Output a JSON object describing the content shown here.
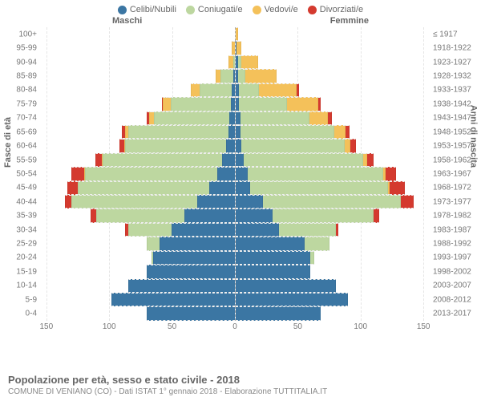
{
  "legend": [
    {
      "label": "Celibi/Nubili",
      "color": "#3b76a3"
    },
    {
      "label": "Coniugati/e",
      "color": "#bdd7a0"
    },
    {
      "label": "Vedovi/e",
      "color": "#f4c15a"
    },
    {
      "label": "Divorziati/e",
      "color": "#d43a2f"
    }
  ],
  "side_labels": {
    "male": "Maschi",
    "female": "Femmine"
  },
  "axis_labels": {
    "left": "Fasce di età",
    "right": "Anni di nascita"
  },
  "title": "Popolazione per età, sesso e stato civile - 2018",
  "subtitle": "COMUNE DI VENIANO (CO) - Dati ISTAT 1° gennaio 2018 - Elaborazione TUTTITALIA.IT",
  "x_ticks": [
    150,
    100,
    50,
    0,
    50,
    100,
    150
  ],
  "x_max": 155,
  "colors": {
    "celibi": "#3b76a3",
    "coniugati": "#bdd7a0",
    "vedovi": "#f4c15a",
    "divorziati": "#d43a2f",
    "grid": "#e5e5e5",
    "centerline": "#aaaaaa",
    "text_muted": "#777777",
    "background": "#ffffff"
  },
  "rows": [
    {
      "age": "100+",
      "birth": "≤ 1917",
      "m": {
        "c": 0,
        "g": 0,
        "v": 0,
        "d": 0
      },
      "f": {
        "c": 0,
        "g": 0,
        "v": 2,
        "d": 0
      }
    },
    {
      "age": "95-99",
      "birth": "1918-1922",
      "m": {
        "c": 0,
        "g": 0,
        "v": 2,
        "d": 0
      },
      "f": {
        "c": 1,
        "g": 0,
        "v": 4,
        "d": 0
      }
    },
    {
      "age": "90-94",
      "birth": "1923-1927",
      "m": {
        "c": 0,
        "g": 1,
        "v": 4,
        "d": 0
      },
      "f": {
        "c": 2,
        "g": 3,
        "v": 13,
        "d": 0
      }
    },
    {
      "age": "85-89",
      "birth": "1928-1932",
      "m": {
        "c": 1,
        "g": 10,
        "v": 4,
        "d": 0
      },
      "f": {
        "c": 2,
        "g": 6,
        "v": 25,
        "d": 0
      }
    },
    {
      "age": "80-84",
      "birth": "1933-1937",
      "m": {
        "c": 2,
        "g": 26,
        "v": 7,
        "d": 0
      },
      "f": {
        "c": 3,
        "g": 16,
        "v": 30,
        "d": 2
      }
    },
    {
      "age": "75-79",
      "birth": "1938-1942",
      "m": {
        "c": 3,
        "g": 48,
        "v": 6,
        "d": 1
      },
      "f": {
        "c": 3,
        "g": 38,
        "v": 25,
        "d": 2
      }
    },
    {
      "age": "70-74",
      "birth": "1943-1947",
      "m": {
        "c": 4,
        "g": 60,
        "v": 4,
        "d": 2
      },
      "f": {
        "c": 4,
        "g": 55,
        "v": 15,
        "d": 3
      }
    },
    {
      "age": "65-69",
      "birth": "1948-1952",
      "m": {
        "c": 5,
        "g": 80,
        "v": 2,
        "d": 3
      },
      "f": {
        "c": 4,
        "g": 75,
        "v": 9,
        "d": 3
      }
    },
    {
      "age": "60-64",
      "birth": "1953-1957",
      "m": {
        "c": 7,
        "g": 80,
        "v": 1,
        "d": 4
      },
      "f": {
        "c": 5,
        "g": 82,
        "v": 5,
        "d": 4
      }
    },
    {
      "age": "55-59",
      "birth": "1958-1962",
      "m": {
        "c": 10,
        "g": 95,
        "v": 1,
        "d": 5
      },
      "f": {
        "c": 7,
        "g": 95,
        "v": 3,
        "d": 5
      }
    },
    {
      "age": "50-54",
      "birth": "1963-1967",
      "m": {
        "c": 14,
        "g": 105,
        "v": 1,
        "d": 10
      },
      "f": {
        "c": 10,
        "g": 108,
        "v": 2,
        "d": 8
      }
    },
    {
      "age": "45-49",
      "birth": "1968-1972",
      "m": {
        "c": 20,
        "g": 105,
        "v": 0,
        "d": 8
      },
      "f": {
        "c": 12,
        "g": 110,
        "v": 1,
        "d": 12
      }
    },
    {
      "age": "40-44",
      "birth": "1973-1977",
      "m": {
        "c": 30,
        "g": 100,
        "v": 0,
        "d": 5
      },
      "f": {
        "c": 22,
        "g": 110,
        "v": 0,
        "d": 10
      }
    },
    {
      "age": "35-39",
      "birth": "1978-1982",
      "m": {
        "c": 40,
        "g": 70,
        "v": 0,
        "d": 5
      },
      "f": {
        "c": 30,
        "g": 80,
        "v": 0,
        "d": 5
      }
    },
    {
      "age": "30-34",
      "birth": "1983-1987",
      "m": {
        "c": 50,
        "g": 35,
        "v": 0,
        "d": 2
      },
      "f": {
        "c": 35,
        "g": 45,
        "v": 0,
        "d": 2
      }
    },
    {
      "age": "25-29",
      "birth": "1988-1992",
      "m": {
        "c": 60,
        "g": 10,
        "v": 0,
        "d": 0
      },
      "f": {
        "c": 55,
        "g": 20,
        "v": 0,
        "d": 0
      }
    },
    {
      "age": "20-24",
      "birth": "1993-1997",
      "m": {
        "c": 65,
        "g": 1,
        "v": 0,
        "d": 0
      },
      "f": {
        "c": 60,
        "g": 3,
        "v": 0,
        "d": 0
      }
    },
    {
      "age": "15-19",
      "birth": "1998-2002",
      "m": {
        "c": 70,
        "g": 0,
        "v": 0,
        "d": 0
      },
      "f": {
        "c": 60,
        "g": 0,
        "v": 0,
        "d": 0
      }
    },
    {
      "age": "10-14",
      "birth": "2003-2007",
      "m": {
        "c": 85,
        "g": 0,
        "v": 0,
        "d": 0
      },
      "f": {
        "c": 80,
        "g": 0,
        "v": 0,
        "d": 0
      }
    },
    {
      "age": "5-9",
      "birth": "2008-2012",
      "m": {
        "c": 98,
        "g": 0,
        "v": 0,
        "d": 0
      },
      "f": {
        "c": 90,
        "g": 0,
        "v": 0,
        "d": 0
      }
    },
    {
      "age": "0-4",
      "birth": "2013-2017",
      "m": {
        "c": 70,
        "g": 0,
        "v": 0,
        "d": 0
      },
      "f": {
        "c": 68,
        "g": 0,
        "v": 0,
        "d": 0
      }
    }
  ]
}
